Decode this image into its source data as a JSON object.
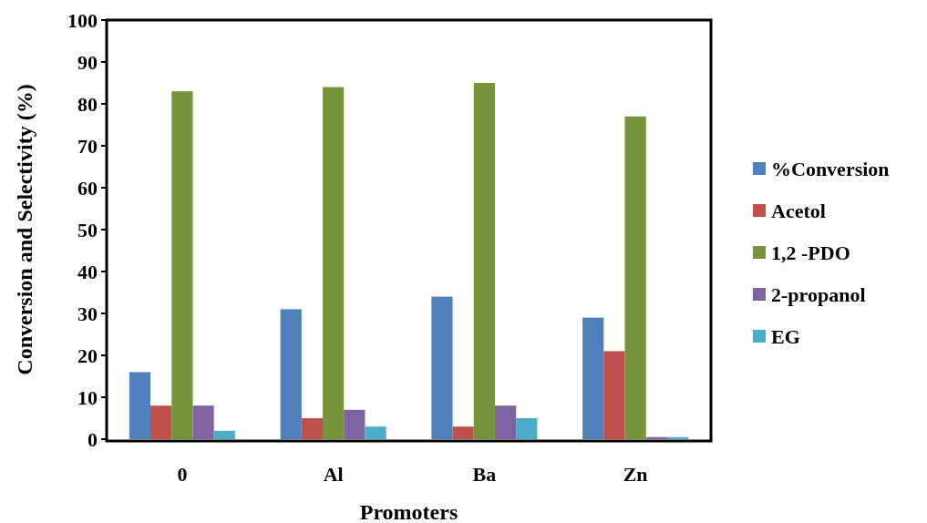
{
  "chart_data": {
    "type": "bar",
    "xlabel": "Promoters",
    "ylabel": "Conversion and Selectivity (%)",
    "categories": [
      "0",
      "Al",
      "Ba",
      "Zn"
    ],
    "series": [
      {
        "name": "%Conversion",
        "color": "#4f81bd",
        "values": [
          16,
          31,
          34,
          29
        ]
      },
      {
        "name": "Acetol",
        "color": "#c0504d",
        "values": [
          8,
          5,
          3,
          21
        ]
      },
      {
        "name": "1,2 -PDO",
        "color": "#77933c",
        "values": [
          83,
          84,
          85,
          77
        ]
      },
      {
        "name": "2-propanol",
        "color": "#8064a2",
        "values": [
          8,
          7,
          8,
          0.5
        ]
      },
      {
        "name": "EG",
        "color": "#4bacc6",
        "values": [
          2,
          3,
          5,
          0.5
        ]
      }
    ],
    "ylim": [
      0,
      100
    ],
    "yticks": [
      0,
      10,
      20,
      30,
      40,
      50,
      60,
      70,
      80,
      90,
      100
    ],
    "grid": false,
    "legend": "right"
  }
}
